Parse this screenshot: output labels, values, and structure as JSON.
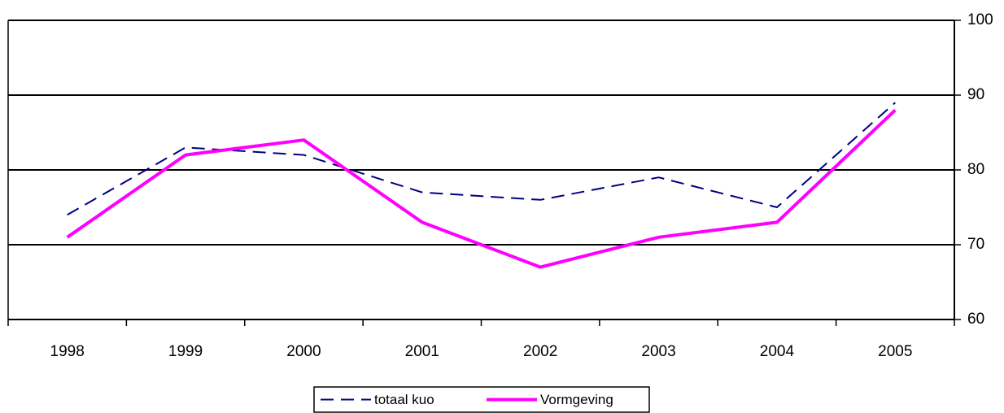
{
  "chart_data": {
    "type": "line",
    "categories": [
      "1998",
      "1999",
      "2000",
      "2001",
      "2002",
      "2003",
      "2004",
      "2005"
    ],
    "series": [
      {
        "name": "totaal kuo",
        "color": "#000080",
        "dashed": true,
        "values": [
          74,
          83,
          82,
          77,
          76,
          79,
          75,
          89
        ]
      },
      {
        "name": "Vormgeving",
        "color": "#ff00ff",
        "dashed": false,
        "values": [
          71,
          82,
          84,
          73,
          67,
          71,
          73,
          88
        ]
      }
    ],
    "ylim": [
      60,
      100
    ],
    "yticks": [
      60,
      70,
      80,
      90,
      100
    ],
    "grid": true,
    "y_axis_side": "right",
    "legend": "bottom"
  }
}
